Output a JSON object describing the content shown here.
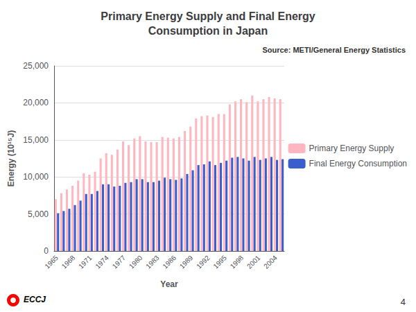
{
  "chart_data": {
    "type": "bar",
    "title": "Primary Energy Supply and Final Energy\nConsumption in Japan",
    "xlabel": "Year",
    "ylabel": "Energy (10¹⁵J)",
    "annotations": [
      "Source: METI/General Energy Statistics",
      "4",
      "ECCJ"
    ],
    "categories": [
      "1965",
      null,
      null,
      "1968",
      null,
      null,
      "1971",
      null,
      null,
      "1974",
      null,
      null,
      "1977",
      null,
      null,
      "1980",
      null,
      null,
      "1983",
      null,
      null,
      "1986",
      null,
      null,
      "1989",
      null,
      null,
      "1992",
      null,
      null,
      "1995",
      null,
      null,
      "1998",
      null,
      null,
      "2001",
      null,
      null,
      "2004",
      null
    ],
    "series": [
      {
        "name": "Primary Energy Supply",
        "color": "#FFB6C1",
        "values": [
          7000,
          7800,
          8300,
          8800,
          9500,
          10500,
          10300,
          10700,
          12500,
          13200,
          13000,
          13700,
          14800,
          14300,
          15200,
          15500,
          14800,
          14700,
          14700,
          15400,
          15300,
          15200,
          15400,
          16200,
          16800,
          17900,
          18200,
          18300,
          18100,
          18500,
          18500,
          19800,
          20200,
          20500,
          20100,
          21000,
          20200,
          20500,
          20800,
          20600,
          20500
        ]
      },
      {
        "name": "Final Energy Consumption",
        "color": "#3A5FCD",
        "values": [
          5100,
          5400,
          5700,
          6200,
          6800,
          7700,
          7700,
          8100,
          9000,
          9000,
          8700,
          8800,
          9200,
          9300,
          9700,
          9700,
          9300,
          9300,
          9500,
          9900,
          9700,
          9600,
          9800,
          10400,
          10900,
          11600,
          11700,
          12100,
          11600,
          11900,
          12200,
          12600,
          12700,
          12500,
          12200,
          12700,
          12300,
          12500,
          12700,
          12300,
          12400
        ]
      }
    ],
    "ylim": [
      0,
      25000
    ],
    "yticks": [
      0,
      {
        "value": 5000,
        "label": "5,000"
      },
      {
        "value": 10000,
        "label": "10,000"
      },
      {
        "value": 15000,
        "label": "15,000"
      },
      {
        "value": 20000,
        "label": "20,000"
      },
      {
        "value": 25000,
        "label": "25,000"
      }
    ],
    "grid": true,
    "legend": "right"
  }
}
